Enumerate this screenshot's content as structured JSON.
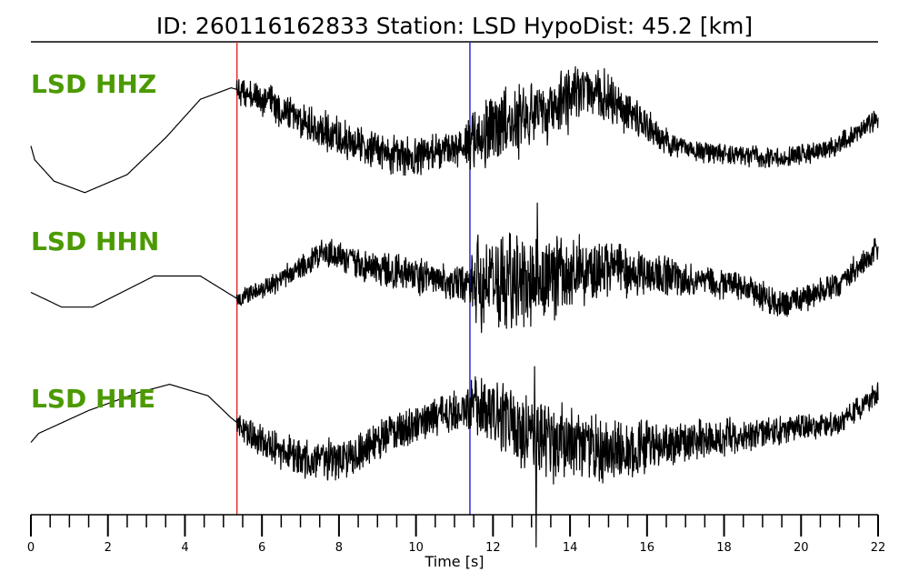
{
  "chart_data": {
    "type": "line",
    "title": "ID: 260116162833   Station: LSD   HypoDist:    45.2 [km]",
    "xlabel": "Time [s]",
    "xlim": [
      0,
      22
    ],
    "x_ticks": [
      0,
      2,
      4,
      6,
      8,
      10,
      12,
      14,
      16,
      18,
      20,
      22
    ],
    "x_minor_tick_step": 0.5,
    "grid": false,
    "pick_markers": [
      {
        "time": 5.35,
        "color": "#e0302a"
      },
      {
        "time": 11.4,
        "color": "#2a2ae0"
      }
    ],
    "label_color": "#4b9a00",
    "series": [
      {
        "name": "LSD HHZ",
        "noise_start": 5.35,
        "envelope": [
          [
            0,
            0
          ],
          [
            5.3,
            0.0
          ],
          [
            5.4,
            0.22
          ],
          [
            6.5,
            0.28
          ],
          [
            9,
            0.27
          ],
          [
            11.3,
            0.25
          ],
          [
            11.5,
            0.5
          ],
          [
            12.5,
            0.5
          ],
          [
            14,
            0.45
          ],
          [
            15.5,
            0.3
          ],
          [
            17,
            0.15
          ],
          [
            22,
            0.14
          ]
        ],
        "background": [
          [
            0,
            0.15
          ],
          [
            0.1,
            0.32
          ],
          [
            0.6,
            0.58
          ],
          [
            1.4,
            0.72
          ],
          [
            2.5,
            0.5
          ],
          [
            3.5,
            0.05
          ],
          [
            4.4,
            -0.42
          ],
          [
            5.2,
            -0.56
          ],
          [
            5.8,
            -0.48
          ],
          [
            7.5,
            -0.06
          ],
          [
            8.8,
            0.18
          ],
          [
            10,
            0.3
          ],
          [
            11,
            0.18
          ],
          [
            12.5,
            -0.14
          ],
          [
            13.8,
            -0.4
          ],
          [
            14.8,
            -0.52
          ],
          [
            15.8,
            -0.15
          ],
          [
            16.6,
            0.13
          ],
          [
            17.8,
            0.25
          ],
          [
            19.5,
            0.3
          ],
          [
            20.8,
            0.18
          ],
          [
            22,
            -0.18
          ]
        ],
        "spikes": []
      },
      {
        "name": "LSD HHN",
        "noise_start": 5.35,
        "envelope": [
          [
            0,
            0
          ],
          [
            5.3,
            0.0
          ],
          [
            5.4,
            0.12
          ],
          [
            7,
            0.17
          ],
          [
            10,
            0.25
          ],
          [
            11.3,
            0.27
          ],
          [
            11.6,
            0.65
          ],
          [
            13.5,
            0.6
          ],
          [
            15,
            0.4
          ],
          [
            17,
            0.22
          ],
          [
            22,
            0.17
          ]
        ],
        "background": [
          [
            0,
            0.15
          ],
          [
            0.8,
            0.33
          ],
          [
            1.6,
            0.33
          ],
          [
            3.2,
            -0.05
          ],
          [
            4.4,
            -0.05
          ],
          [
            5.4,
            0.24
          ],
          [
            6.5,
            0.0
          ],
          [
            7.6,
            -0.36
          ],
          [
            8.8,
            -0.16
          ],
          [
            10,
            -0.05
          ],
          [
            11.5,
            0.05
          ],
          [
            13,
            0.0
          ],
          [
            14,
            -0.05
          ],
          [
            15,
            -0.12
          ],
          [
            16,
            -0.07
          ],
          [
            18.5,
            0.08
          ],
          [
            19.5,
            0.3
          ],
          [
            20.8,
            0.1
          ],
          [
            22,
            -0.4
          ]
        ],
        "spikes": [
          {
            "time": 13.15,
            "value": -0.82
          },
          {
            "time": 12.15,
            "value": 0.85
          },
          {
            "time": 12.45,
            "value": -0.55
          }
        ]
      },
      {
        "name": "LSD HHE",
        "noise_start": 5.35,
        "envelope": [
          [
            0,
            0
          ],
          [
            5.3,
            0.0
          ],
          [
            5.4,
            0.2
          ],
          [
            7,
            0.3
          ],
          [
            10,
            0.25
          ],
          [
            11.3,
            0.28
          ],
          [
            11.6,
            0.5
          ],
          [
            13.5,
            0.55
          ],
          [
            15,
            0.42
          ],
          [
            17,
            0.28
          ],
          [
            20,
            0.18
          ],
          [
            22,
            0.17
          ]
        ],
        "background": [
          [
            0,
            0.15
          ],
          [
            0.2,
            0.04
          ],
          [
            1.5,
            -0.24
          ],
          [
            2.8,
            -0.46
          ],
          [
            3.6,
            -0.56
          ],
          [
            4.6,
            -0.42
          ],
          [
            5.2,
            -0.15
          ],
          [
            5.8,
            0.08
          ],
          [
            7,
            0.37
          ],
          [
            8.2,
            0.36
          ],
          [
            9.4,
            0.02
          ],
          [
            10.6,
            -0.2
          ],
          [
            11.6,
            -0.3
          ],
          [
            12.6,
            -0.05
          ],
          [
            13.6,
            0.14
          ],
          [
            15,
            0.26
          ],
          [
            16.6,
            0.16
          ],
          [
            18.8,
            0.04
          ],
          [
            21,
            -0.08
          ],
          [
            22,
            -0.45
          ]
        ],
        "spikes": [
          {
            "time": 13.12,
            "value": 1.25
          },
          {
            "time": 13.08,
            "value": -0.7
          }
        ]
      }
    ]
  }
}
